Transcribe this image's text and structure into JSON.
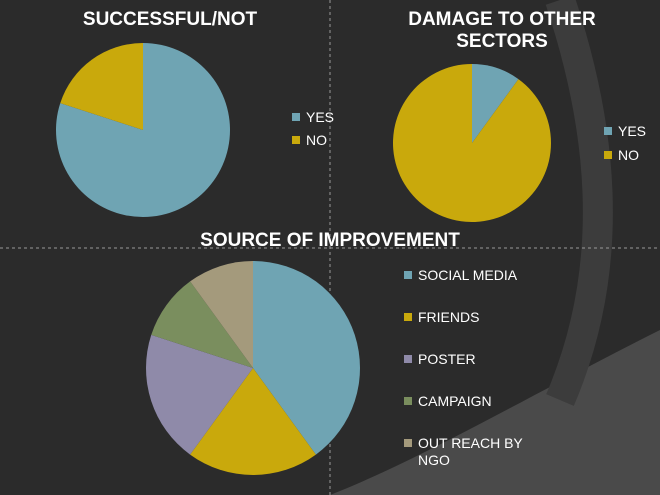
{
  "colors": {
    "background": "#2b2b2b",
    "swirl": "#5a5a5a",
    "divider": "#9a9a9a",
    "text": "#ffffff"
  },
  "chart_data": [
    {
      "type": "pie",
      "title": "SUCCESSFUL/NOT",
      "categories": [
        "YES",
        "NO"
      ],
      "values": [
        80,
        20
      ],
      "colors": [
        "#6fa4b3",
        "#c9a90c"
      ],
      "legend_position": "right"
    },
    {
      "type": "pie",
      "title": "DAMAGE TO OTHER SECTORS",
      "categories": [
        "YES",
        "NO"
      ],
      "values": [
        10,
        90
      ],
      "colors": [
        "#6fa4b3",
        "#c9a90c"
      ],
      "legend_position": "right"
    },
    {
      "type": "pie",
      "title": "SOURCE OF IMPROVEMENT",
      "categories": [
        "SOCIAL MEDIA",
        "FRIENDS",
        "POSTER",
        "CAMPAIGN",
        "OUT REACH BY NGO"
      ],
      "values": [
        40,
        20,
        20,
        10,
        10
      ],
      "colors": [
        "#6fa4b3",
        "#c9a90c",
        "#8f8aa9",
        "#7a8e5e",
        "#a49a7c"
      ],
      "legend_position": "right"
    }
  ]
}
